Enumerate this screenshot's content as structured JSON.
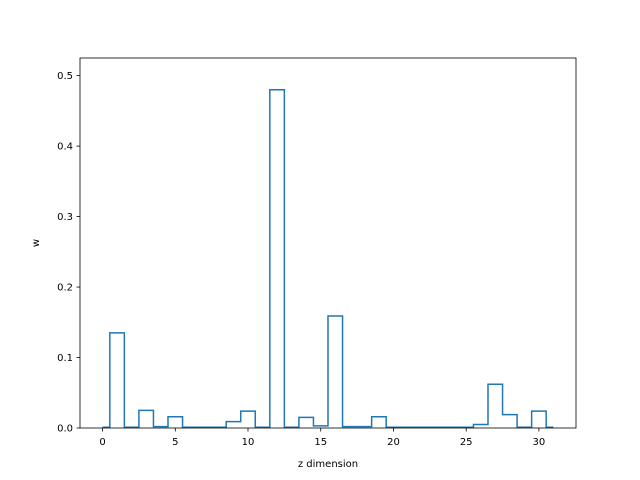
{
  "chart_data": {
    "type": "step",
    "xlabel": "z dimension",
    "ylabel": "w",
    "xlim": [
      -1.55,
      32.55
    ],
    "ylim": [
      0,
      0.525
    ],
    "xticks": [
      0,
      5,
      10,
      15,
      20,
      25,
      30
    ],
    "yticks": [
      0.0,
      0.1,
      0.2,
      0.3,
      0.4,
      0.5
    ],
    "x": [
      0,
      1,
      2,
      3,
      4,
      5,
      6,
      7,
      8,
      9,
      10,
      11,
      12,
      13,
      14,
      15,
      16,
      17,
      18,
      19,
      20,
      21,
      22,
      23,
      24,
      25,
      26,
      27,
      28,
      29,
      30,
      31
    ],
    "values": [
      0.001,
      0.135,
      0.001,
      0.025,
      0.002,
      0.016,
      0.001,
      0.001,
      0.001,
      0.009,
      0.024,
      0.001,
      0.48,
      0.001,
      0.015,
      0.003,
      0.159,
      0.002,
      0.002,
      0.016,
      0.001,
      0.001,
      0.001,
      0.001,
      0.001,
      0.001,
      0.005,
      0.062,
      0.019,
      0.001,
      0.024,
      0.001
    ],
    "grid": false,
    "line_color": "#1f77b4"
  }
}
